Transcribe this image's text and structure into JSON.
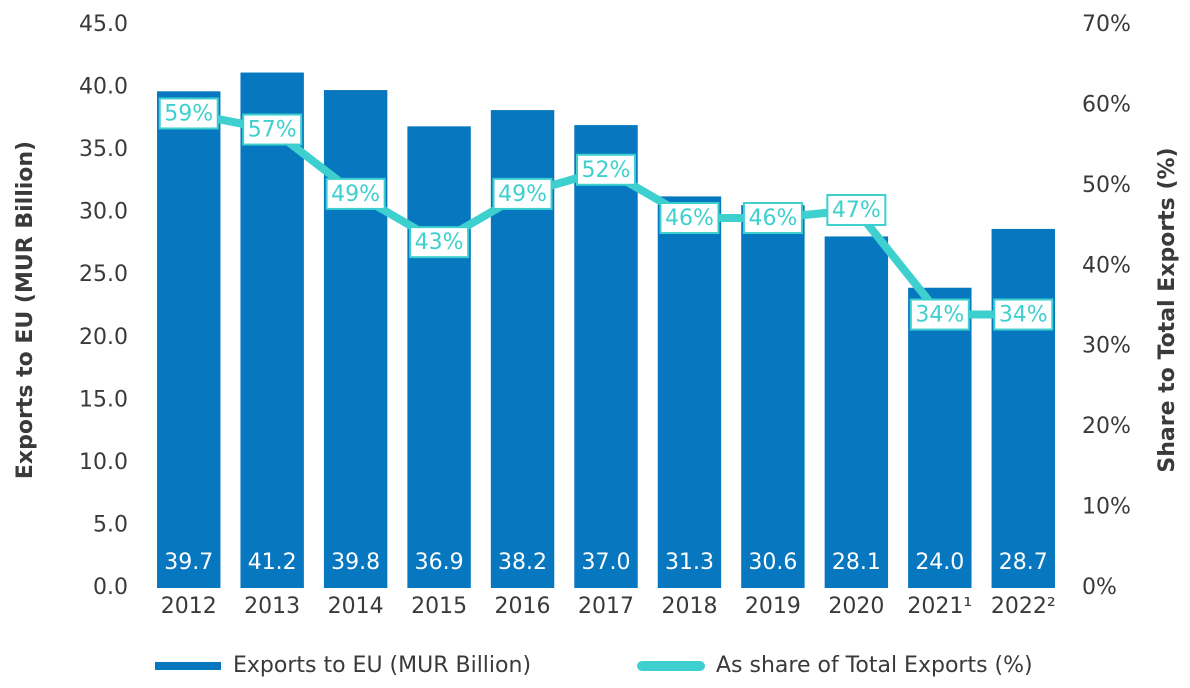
{
  "chart_data": {
    "type": "bar-line",
    "categories": [
      "2012",
      "2013",
      "2014",
      "2015",
      "2016",
      "2017",
      "2018",
      "2019",
      "2020",
      "2021¹",
      "2022²"
    ],
    "series": [
      {
        "name": "Exports to EU (MUR Billion)",
        "type": "bar",
        "color": "#0778c0",
        "values": [
          39.7,
          41.2,
          39.8,
          36.9,
          38.2,
          37.0,
          31.3,
          30.6,
          28.1,
          24.0,
          28.7
        ],
        "value_labels": [
          "39.7",
          "41.2",
          "39.8",
          "36.9",
          "38.2",
          "37.0",
          "31.3",
          "30.6",
          "28.1",
          "24.0",
          "28.7"
        ]
      },
      {
        "name": "As share of Total Exports (%)",
        "type": "line",
        "axis": "y2",
        "color": "#3ecfcf",
        "values": [
          59,
          57,
          49,
          43,
          49,
          52,
          46,
          46,
          47,
          34,
          34
        ],
        "value_labels": [
          "59%",
          "57%",
          "49%",
          "43%",
          "49%",
          "52%",
          "46%",
          "46%",
          "47%",
          "34%",
          "34%"
        ]
      }
    ],
    "y_label": "Exports to EU (MUR Billion)",
    "y2_label": "Share to Total Exports (%)",
    "ylim": [
      0,
      45
    ],
    "yticks": [
      {
        "value": 0,
        "label": "0.0"
      },
      {
        "value": 5,
        "label": "5.0"
      },
      {
        "value": 10,
        "label": "10.0"
      },
      {
        "value": 15,
        "label": "15.0"
      },
      {
        "value": 20,
        "label": "20.0"
      },
      {
        "value": 25,
        "label": "25.0"
      },
      {
        "value": 30,
        "label": "30.0"
      },
      {
        "value": 35,
        "label": "35.0"
      },
      {
        "value": 40,
        "label": "40.0"
      },
      {
        "value": 45,
        "label": "45.0"
      }
    ],
    "y2lim": [
      0,
      70
    ],
    "y2ticks": [
      {
        "value": 0,
        "label": "0%"
      },
      {
        "value": 10,
        "label": "10%"
      },
      {
        "value": 20,
        "label": "20%"
      },
      {
        "value": 30,
        "label": "30%"
      },
      {
        "value": 40,
        "label": "40%"
      },
      {
        "value": 50,
        "label": "50%"
      },
      {
        "value": 60,
        "label": "60%"
      },
      {
        "value": 70,
        "label": "70%"
      }
    ],
    "legend": "bottom"
  }
}
